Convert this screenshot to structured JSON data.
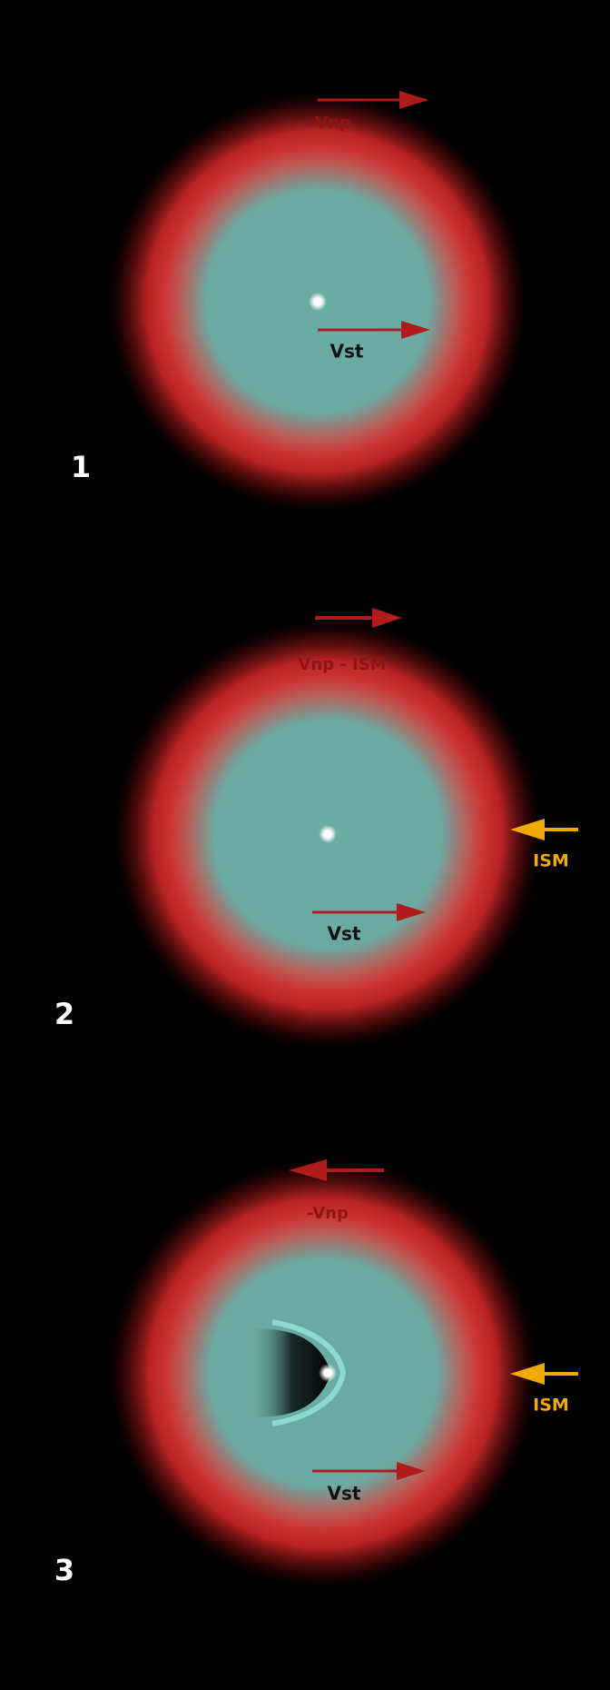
{
  "panels": [
    {
      "number": "1",
      "top_label": "Vnp",
      "star_label": "Vst"
    },
    {
      "number": "2",
      "top_label": "Vnp - ISM",
      "star_label": "Vst",
      "side_label": "ISM"
    },
    {
      "number": "3",
      "top_label": "-Vnp",
      "star_label": "Vst",
      "side_label": "ISM"
    }
  ]
}
